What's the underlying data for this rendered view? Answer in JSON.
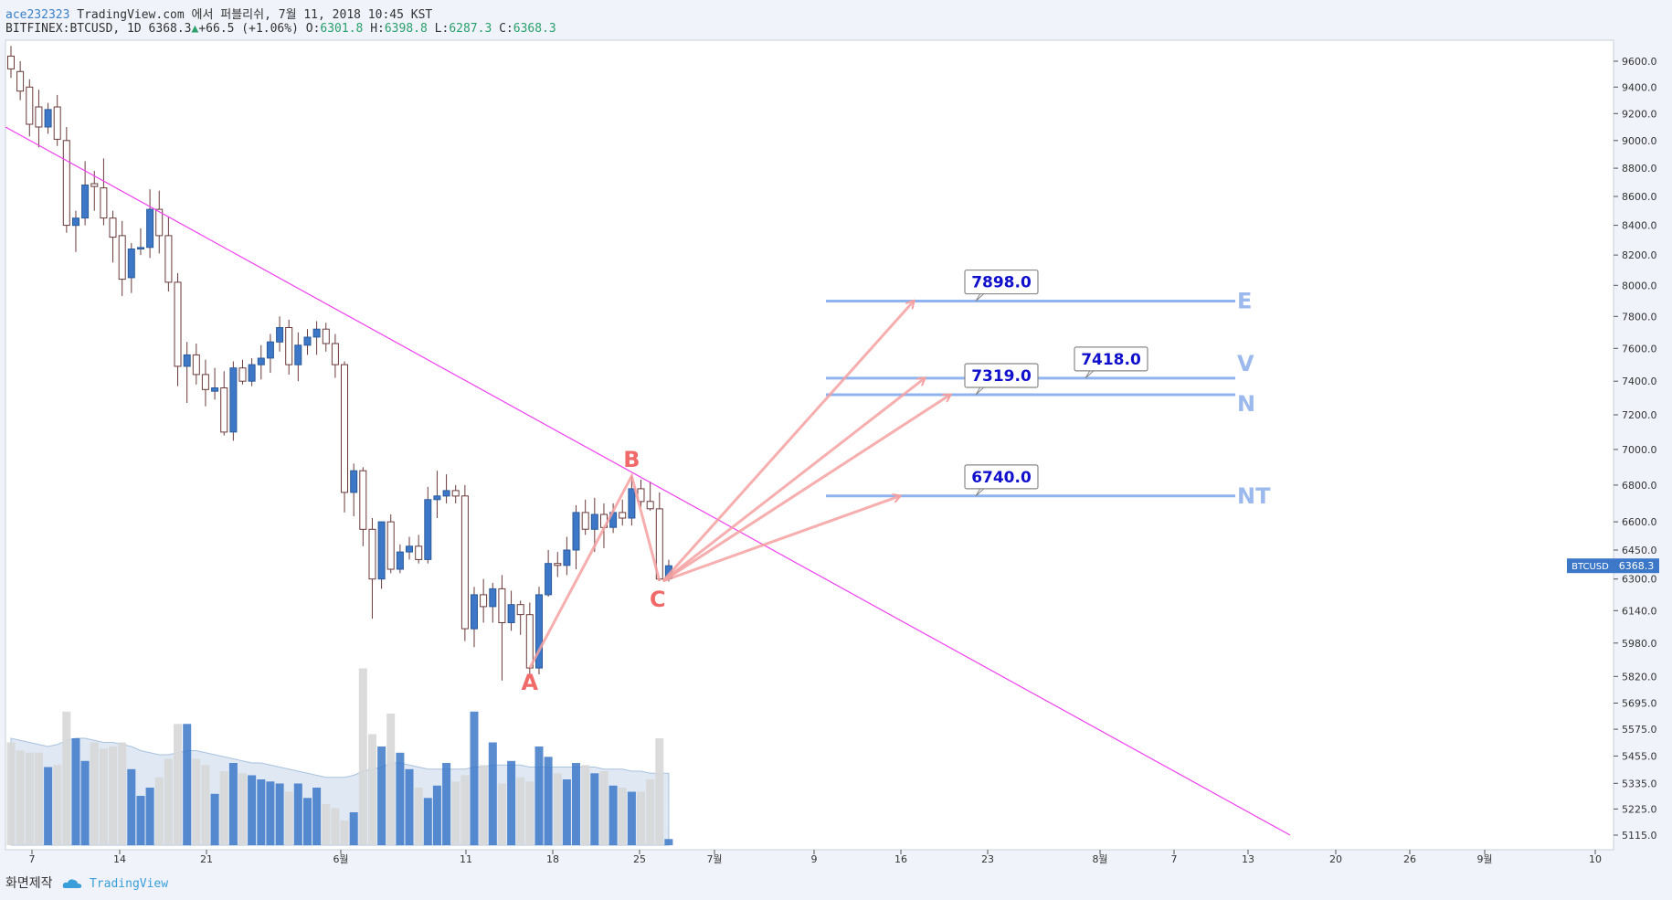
{
  "header": {
    "user": "ace232323",
    "publish_text": " TradingView.com 에서 퍼블리쉬, 7월 11, 2018 10:45 KST"
  },
  "symbol_line": {
    "symbol": "BITFINEX:BTCUSD, 1D",
    "last": "6368.3",
    "change": "+66.5 (+1.06%)",
    "o_label": "O:",
    "o": "6301.8",
    "h_label": "H:",
    "h": "6398.8",
    "l_label": "L:",
    "l": "6287.3",
    "c_label": "C:",
    "c": "6368.3"
  },
  "footer": {
    "label": "화면제작",
    "brand": "TradingView"
  },
  "colors": {
    "up": "#3d78c8",
    "down": "#ffffff",
    "wick": "#6b3a3a",
    "trendline": "#f040f0",
    "level": "#8fb3ef",
    "level_text": "#9cb9ee",
    "arrow": "#f4a0a0",
    "abc": "#f06a6a",
    "volume_up": "#3d78c8",
    "volume_down": "#d7d7d7",
    "volume_ma": "#c5d6ea",
    "price_tag": "#3d78c8"
  },
  "chart_data": {
    "type": "candlestick",
    "price_axis": {
      "scale": "log",
      "ticks": [
        "9600.0",
        "9400.0",
        "9200.0",
        "9000.0",
        "8800.0",
        "8600.0",
        "8400.0",
        "8200.0",
        "8000.0",
        "7800.0",
        "7600.0",
        "7400.0",
        "7200.0",
        "7000.0",
        "6800.0",
        "6600.0",
        "6450.0",
        "6300.0",
        "6140.0",
        "5980.0",
        "5820.0",
        "5695.0",
        "5575.0",
        "5455.0",
        "5335.0",
        "5225.0",
        "5115.0"
      ],
      "last_price_tag": {
        "symbol": "BTCUSD",
        "value": "6368.3"
      }
    },
    "time_axis": {
      "ticks": [
        "7",
        "14",
        "21",
        "6월",
        "11",
        "18",
        "25",
        "7월",
        "9",
        "16",
        "23",
        "8월",
        "7",
        "13",
        "20",
        "26",
        "9월",
        "10"
      ]
    },
    "candles": [
      {
        "o": 9640,
        "h": 9720,
        "l": 9470,
        "c": 9540
      },
      {
        "o": 9520,
        "h": 9600,
        "l": 9300,
        "c": 9370
      },
      {
        "o": 9400,
        "h": 9460,
        "l": 9030,
        "c": 9120
      },
      {
        "o": 9250,
        "h": 9380,
        "l": 8950,
        "c": 9100
      },
      {
        "o": 9100,
        "h": 9280,
        "l": 9050,
        "c": 9230
      },
      {
        "o": 9250,
        "h": 9340,
        "l": 8960,
        "c": 9010
      },
      {
        "o": 9000,
        "h": 9100,
        "l": 8350,
        "c": 8400
      },
      {
        "o": 8400,
        "h": 8500,
        "l": 8220,
        "c": 8450
      },
      {
        "o": 8450,
        "h": 8850,
        "l": 8400,
        "c": 8680
      },
      {
        "o": 8690,
        "h": 8780,
        "l": 8500,
        "c": 8670
      },
      {
        "o": 8660,
        "h": 8870,
        "l": 8400,
        "c": 8450
      },
      {
        "o": 8450,
        "h": 8500,
        "l": 8150,
        "c": 8320
      },
      {
        "o": 8330,
        "h": 8430,
        "l": 7930,
        "c": 8040
      },
      {
        "o": 8050,
        "h": 8280,
        "l": 7950,
        "c": 8240
      },
      {
        "o": 8240,
        "h": 8380,
        "l": 8200,
        "c": 8250
      },
      {
        "o": 8250,
        "h": 8650,
        "l": 8180,
        "c": 8510
      },
      {
        "o": 8510,
        "h": 8640,
        "l": 8210,
        "c": 8330
      },
      {
        "o": 8330,
        "h": 8460,
        "l": 7960,
        "c": 8020
      },
      {
        "o": 8020,
        "h": 8080,
        "l": 7370,
        "c": 7490
      },
      {
        "o": 7490,
        "h": 7640,
        "l": 7270,
        "c": 7560
      },
      {
        "o": 7560,
        "h": 7630,
        "l": 7380,
        "c": 7440
      },
      {
        "o": 7440,
        "h": 7530,
        "l": 7250,
        "c": 7350
      },
      {
        "o": 7340,
        "h": 7480,
        "l": 7290,
        "c": 7360
      },
      {
        "o": 7360,
        "h": 7460,
        "l": 7080,
        "c": 7100
      },
      {
        "o": 7100,
        "h": 7520,
        "l": 7050,
        "c": 7480
      },
      {
        "o": 7480,
        "h": 7530,
        "l": 7380,
        "c": 7400
      },
      {
        "o": 7400,
        "h": 7540,
        "l": 7370,
        "c": 7500
      },
      {
        "o": 7500,
        "h": 7620,
        "l": 7410,
        "c": 7540
      },
      {
        "o": 7540,
        "h": 7690,
        "l": 7450,
        "c": 7640
      },
      {
        "o": 7640,
        "h": 7800,
        "l": 7580,
        "c": 7730
      },
      {
        "o": 7730,
        "h": 7780,
        "l": 7440,
        "c": 7500
      },
      {
        "o": 7500,
        "h": 7700,
        "l": 7400,
        "c": 7620
      },
      {
        "o": 7620,
        "h": 7720,
        "l": 7560,
        "c": 7670
      },
      {
        "o": 7670,
        "h": 7770,
        "l": 7560,
        "c": 7720
      },
      {
        "o": 7720,
        "h": 7760,
        "l": 7580,
        "c": 7630
      },
      {
        "o": 7630,
        "h": 7690,
        "l": 7420,
        "c": 7500
      },
      {
        "o": 7500,
        "h": 7520,
        "l": 6650,
        "c": 6760
      },
      {
        "o": 6760,
        "h": 6920,
        "l": 6630,
        "c": 6880
      },
      {
        "o": 6880,
        "h": 6900,
        "l": 6470,
        "c": 6560
      },
      {
        "o": 6560,
        "h": 6620,
        "l": 6100,
        "c": 6300
      },
      {
        "o": 6300,
        "h": 6600,
        "l": 6250,
        "c": 6600
      },
      {
        "o": 6600,
        "h": 6640,
        "l": 6330,
        "c": 6350
      },
      {
        "o": 6350,
        "h": 6480,
        "l": 6330,
        "c": 6440
      },
      {
        "o": 6440,
        "h": 6520,
        "l": 6400,
        "c": 6470
      },
      {
        "o": 6470,
        "h": 6530,
        "l": 6380,
        "c": 6400
      },
      {
        "o": 6400,
        "h": 6790,
        "l": 6380,
        "c": 6720
      },
      {
        "o": 6720,
        "h": 6880,
        "l": 6620,
        "c": 6740
      },
      {
        "o": 6740,
        "h": 6860,
        "l": 6700,
        "c": 6770
      },
      {
        "o": 6770,
        "h": 6800,
        "l": 6700,
        "c": 6740
      },
      {
        "o": 6740,
        "h": 6800,
        "l": 5990,
        "c": 6050
      },
      {
        "o": 6050,
        "h": 6260,
        "l": 5960,
        "c": 6220
      },
      {
        "o": 6220,
        "h": 6300,
        "l": 6080,
        "c": 6160
      },
      {
        "o": 6160,
        "h": 6280,
        "l": 6080,
        "c": 6250
      },
      {
        "o": 6250,
        "h": 6320,
        "l": 5800,
        "c": 6080
      },
      {
        "o": 6080,
        "h": 6240,
        "l": 6040,
        "c": 6170
      },
      {
        "o": 6170,
        "h": 6190,
        "l": 6020,
        "c": 6120
      },
      {
        "o": 6120,
        "h": 6180,
        "l": 5820,
        "c": 5860
      },
      {
        "o": 5860,
        "h": 6260,
        "l": 5830,
        "c": 6220
      },
      {
        "o": 6220,
        "h": 6450,
        "l": 6210,
        "c": 6380
      },
      {
        "o": 6380,
        "h": 6440,
        "l": 6310,
        "c": 6370
      },
      {
        "o": 6370,
        "h": 6520,
        "l": 6320,
        "c": 6450
      },
      {
        "o": 6450,
        "h": 6690,
        "l": 6350,
        "c": 6650
      },
      {
        "o": 6650,
        "h": 6720,
        "l": 6530,
        "c": 6560
      },
      {
        "o": 6560,
        "h": 6730,
        "l": 6440,
        "c": 6640
      },
      {
        "o": 6640,
        "h": 6700,
        "l": 6460,
        "c": 6570
      },
      {
        "o": 6570,
        "h": 6700,
        "l": 6540,
        "c": 6650
      },
      {
        "o": 6650,
        "h": 6720,
        "l": 6580,
        "c": 6620
      },
      {
        "o": 6620,
        "h": 6850,
        "l": 6580,
        "c": 6780
      },
      {
        "o": 6780,
        "h": 6830,
        "l": 6680,
        "c": 6710
      },
      {
        "o": 6710,
        "h": 6820,
        "l": 6660,
        "c": 6670
      },
      {
        "o": 6670,
        "h": 6760,
        "l": 6290,
        "c": 6300
      },
      {
        "o": 6301.8,
        "h": 6398.8,
        "l": 6287.3,
        "c": 6368.3
      }
    ],
    "volume": [
      0.5,
      0.46,
      0.45,
      0.45,
      0.38,
      0.39,
      0.65,
      0.52,
      0.41,
      0.5,
      0.47,
      0.48,
      0.5,
      0.37,
      0.24,
      0.28,
      0.33,
      0.42,
      0.59,
      0.59,
      0.42,
      0.39,
      0.25,
      0.36,
      0.4,
      0.35,
      0.34,
      0.32,
      0.31,
      0.3,
      0.26,
      0.3,
      0.23,
      0.28,
      0.2,
      0.18,
      0.12,
      0.16,
      0.86,
      0.54,
      0.48,
      0.64,
      0.45,
      0.37,
      0.28,
      0.23,
      0.29,
      0.4,
      0.31,
      0.34,
      0.65,
      0.39,
      0.5,
      0.3,
      0.41,
      0.33,
      0.31,
      0.48,
      0.43,
      0.35,
      0.32,
      0.4,
      0.39,
      0.35,
      0.36,
      0.29,
      0.28,
      0.26,
      0.26,
      0.32,
      0.52,
      0.03
    ],
    "volume_ma": [
      0.52,
      0.51,
      0.5,
      0.49,
      0.48,
      0.49,
      0.51,
      0.52,
      0.52,
      0.51,
      0.5,
      0.5,
      0.49,
      0.48,
      0.46,
      0.45,
      0.44,
      0.44,
      0.45,
      0.46,
      0.46,
      0.45,
      0.44,
      0.43,
      0.42,
      0.41,
      0.4,
      0.4,
      0.39,
      0.38,
      0.37,
      0.36,
      0.35,
      0.34,
      0.33,
      0.33,
      0.33,
      0.34,
      0.36,
      0.37,
      0.38,
      0.4,
      0.4,
      0.39,
      0.38,
      0.37,
      0.37,
      0.37,
      0.37,
      0.37,
      0.38,
      0.38,
      0.39,
      0.39,
      0.39,
      0.39,
      0.38,
      0.38,
      0.38,
      0.38,
      0.38,
      0.38,
      0.38,
      0.38,
      0.37,
      0.37,
      0.37,
      0.36,
      0.36,
      0.35,
      0.35,
      0.35
    ],
    "levels": [
      {
        "label": "E",
        "price": 7898.0,
        "tag": "7898.0"
      },
      {
        "label": "V",
        "price": 7418.0,
        "tag": "7418.0"
      },
      {
        "label": "N",
        "price": 7319.0,
        "tag": "7319.0"
      },
      {
        "label": "NT",
        "price": 6740.0,
        "tag": "6740.0"
      }
    ],
    "waves": [
      {
        "label": "A",
        "price": 5860
      },
      {
        "label": "B",
        "price": 6850
      },
      {
        "label": "C",
        "price": 6290
      }
    ],
    "trendline": {
      "start_price": 9100,
      "end_price": 5115
    }
  }
}
